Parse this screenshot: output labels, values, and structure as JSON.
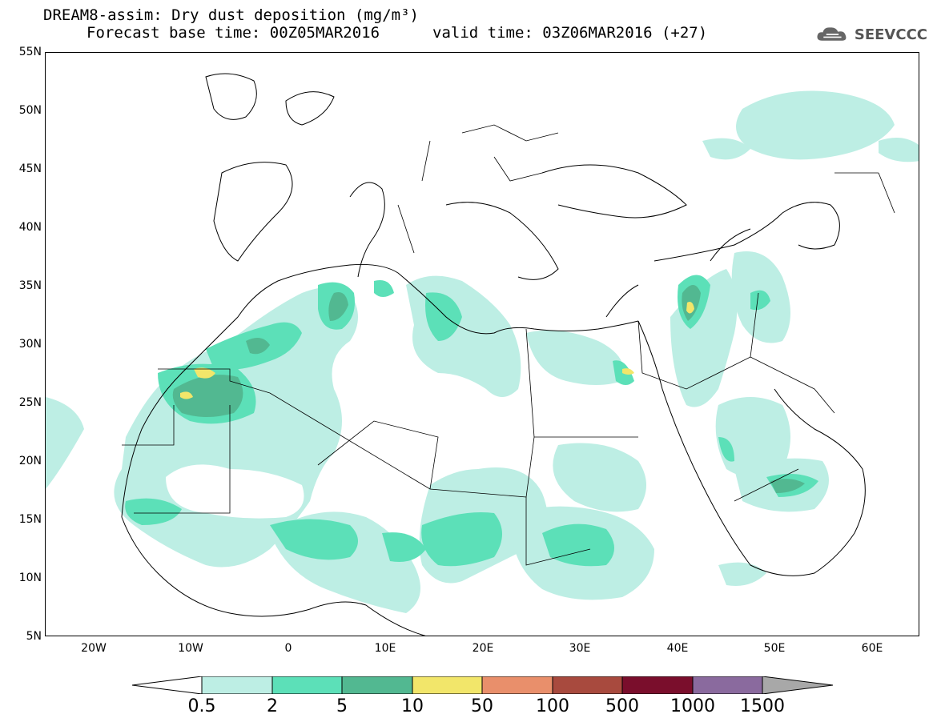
{
  "title": {
    "line1": "DREAM8-assim: Dry dust deposition (mg/m³)",
    "base_time": "Forecast base time: 00Z05MAR2016",
    "valid_time": "valid time: 03Z06MAR2016 (+27)"
  },
  "logo": {
    "text": "SEEVCCC",
    "icon": "cloud-logo-icon"
  },
  "axes": {
    "lat_labels": [
      "55N",
      "50N",
      "45N",
      "40N",
      "35N",
      "30N",
      "25N",
      "20N",
      "15N",
      "10N",
      "5N"
    ],
    "lon_labels": [
      "20W",
      "10W",
      "0",
      "10E",
      "20E",
      "30E",
      "40E",
      "50E",
      "60E"
    ]
  },
  "colorbar": {
    "labels": [
      "0.5",
      "2",
      "5",
      "10",
      "50",
      "100",
      "500",
      "1000",
      "1500"
    ],
    "colors": [
      "#ffffff",
      "#bdeee4",
      "#5ce0b8",
      "#52b891",
      "#f2e66a",
      "#e98f6b",
      "#a84a3e",
      "#7a0e2c",
      "#8a6a9e",
      "#a8a8a8"
    ]
  }
}
